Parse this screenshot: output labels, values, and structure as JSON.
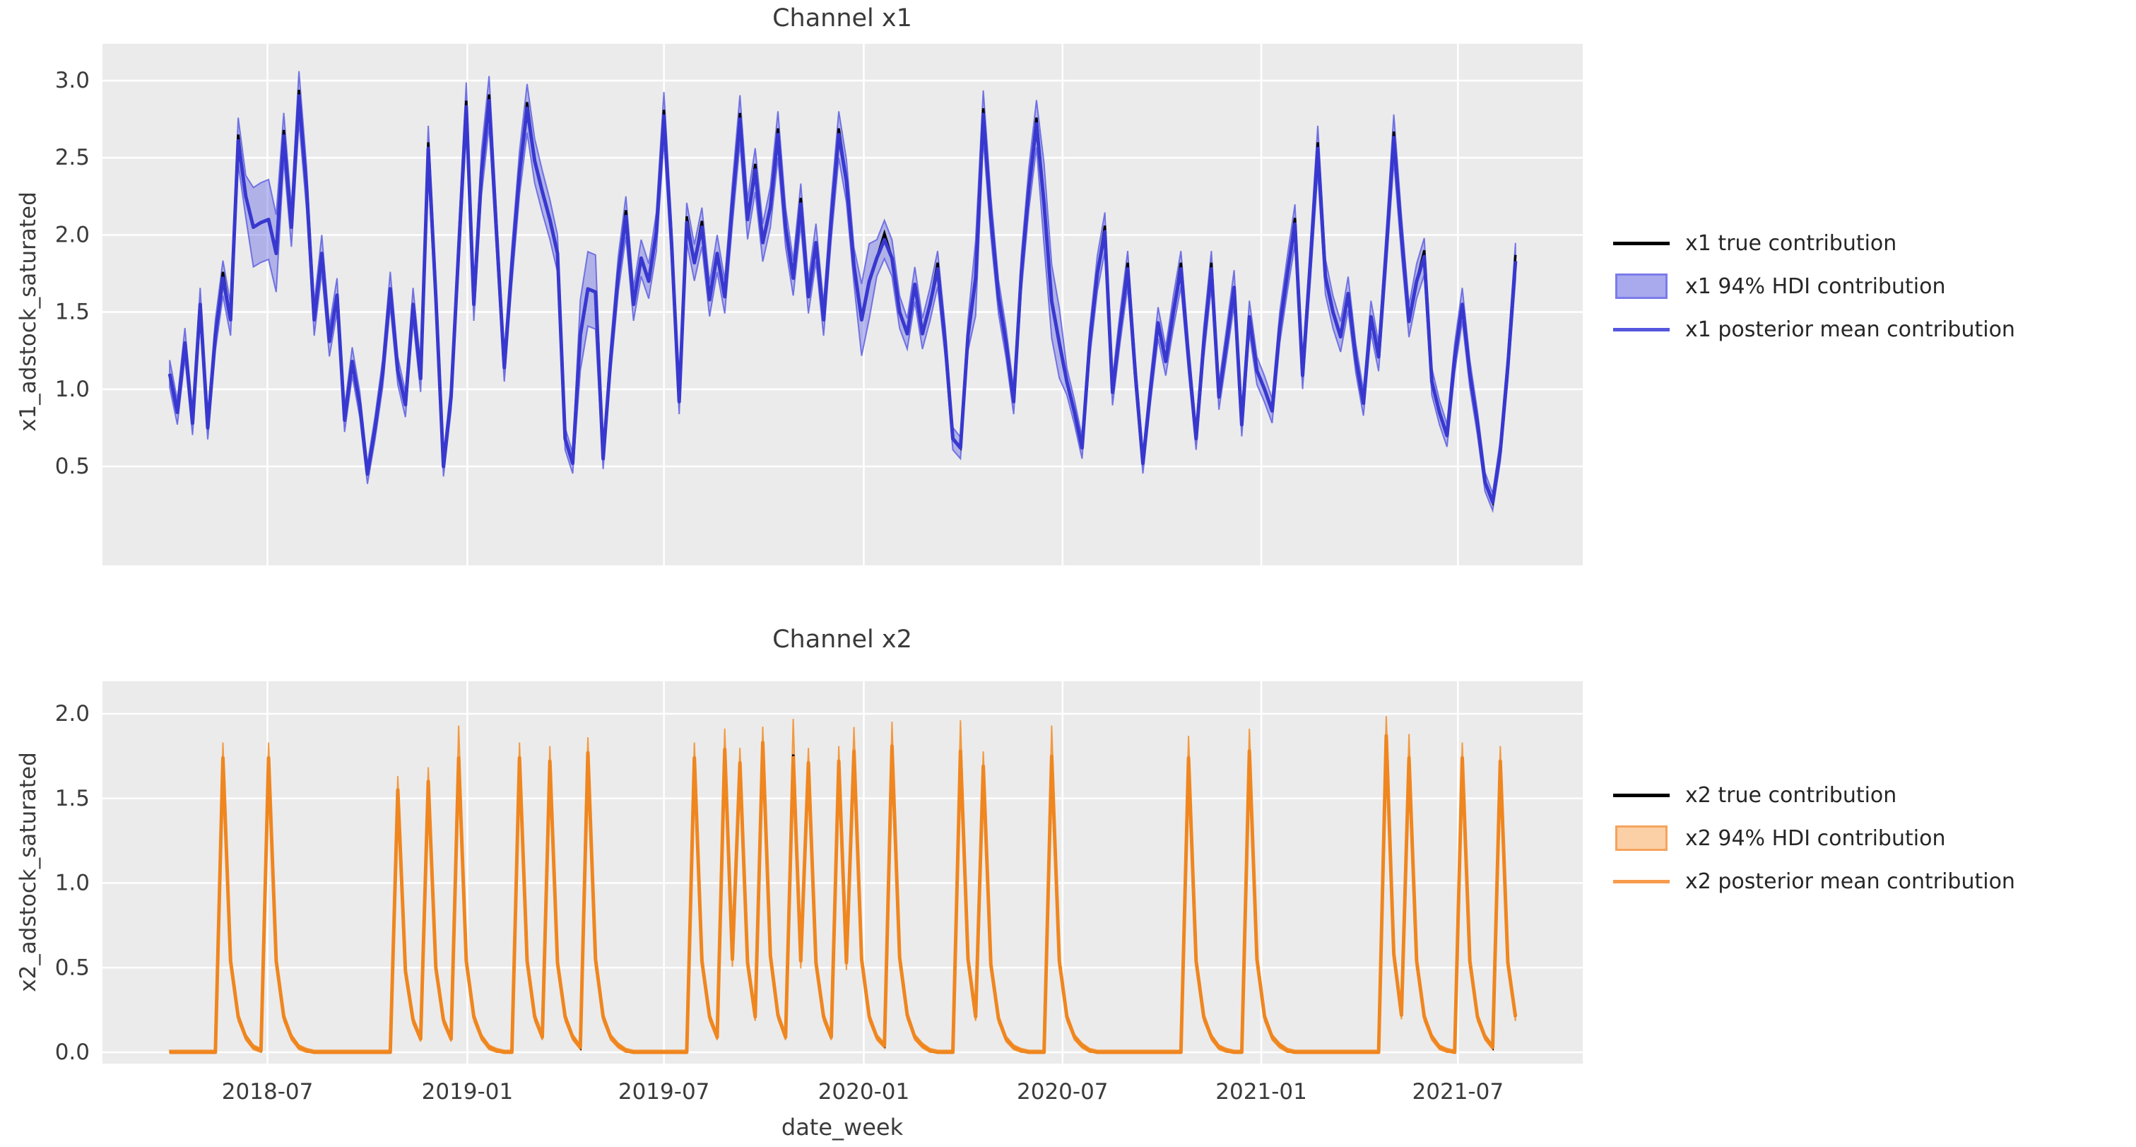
{
  "figure": {
    "background": "#ffffff",
    "axes_background": "#ebebeb",
    "grid_color": "#ffffff",
    "text_color": "#3a3a3a"
  },
  "chart_data": [
    {
      "type": "line",
      "title": "Channel x1",
      "ylabel": "x1_adstock_saturated",
      "xlabel": "",
      "x_unit": "week",
      "x_start_label": "2018-04",
      "ylim": [
        -0.14,
        3.24
      ],
      "grid": true,
      "legend_position": "right",
      "yticks": [
        {
          "v": 0.5,
          "label": "0.5"
        },
        {
          "v": 1.0,
          "label": "1.0"
        },
        {
          "v": 1.5,
          "label": "1.5"
        },
        {
          "v": 2.0,
          "label": "2.0"
        },
        {
          "v": 2.5,
          "label": "2.5"
        },
        {
          "v": 3.0,
          "label": "3.0"
        }
      ],
      "xticks": [
        {
          "w": 12.857,
          "label": "2018-07"
        },
        {
          "w": 39.143,
          "label": "2019-01"
        },
        {
          "w": 65.0,
          "label": "2019-07"
        },
        {
          "w": 91.286,
          "label": "2020-01"
        },
        {
          "w": 117.429,
          "label": "2020-07"
        },
        {
          "w": 143.571,
          "label": "2021-01"
        },
        {
          "w": 169.429,
          "label": "2021-07"
        }
      ],
      "show_xtick_labels": false,
      "colors": {
        "true_line": "#000000",
        "mean_line": "#3838cf",
        "legend_mean_line": "#5456dd",
        "band_fill": "rgba(96,98,226,0.42)",
        "band_edge": "rgba(96,98,226,0.85)",
        "legend_band_fill": "#a9aaee",
        "legend_band_edge": "#7b7cea"
      },
      "legend": [
        {
          "type": "line",
          "label": "x1 true contribution"
        },
        {
          "type": "patch",
          "label": "x1 94% HDI contribution"
        },
        {
          "type": "line2",
          "label": "x1 posterior mean contribution"
        }
      ],
      "mean_values": [
        1.1,
        0.85,
        1.3,
        0.78,
        1.55,
        0.75,
        1.35,
        1.72,
        1.45,
        2.61,
        2.25,
        2.05,
        2.08,
        2.1,
        1.88,
        2.64,
        2.05,
        2.9,
        2.3,
        1.45,
        1.88,
        1.31,
        1.61,
        0.8,
        1.18,
        0.9,
        0.45,
        0.75,
        1.1,
        1.65,
        1.12,
        0.9,
        1.55,
        1.07,
        2.56,
        1.6,
        0.5,
        0.95,
        1.9,
        2.83,
        1.55,
        2.4,
        2.87,
        2.0,
        1.14,
        1.8,
        2.4,
        2.82,
        2.48,
        2.28,
        2.1,
        1.88,
        0.68,
        0.52,
        1.35,
        1.65,
        1.63,
        0.55,
        1.2,
        1.75,
        2.12,
        1.55,
        1.85,
        1.7,
        2.02,
        2.77,
        1.95,
        0.92,
        2.08,
        1.82,
        2.05,
        1.58,
        1.88,
        1.6,
        2.2,
        2.75,
        2.1,
        2.42,
        1.95,
        2.18,
        2.65,
        2.05,
        1.72,
        2.2,
        1.6,
        1.95,
        1.45,
        2.1,
        2.65,
        2.35,
        1.8,
        1.45,
        1.7,
        1.85,
        1.97,
        1.85,
        1.5,
        1.36,
        1.68,
        1.36,
        1.55,
        1.78,
        1.3,
        0.68,
        0.62,
        1.35,
        1.72,
        2.78,
        2.12,
        1.6,
        1.3,
        0.92,
        1.75,
        2.3,
        2.72,
        2.2,
        1.57,
        1.3,
        1.05,
        0.85,
        0.62,
        1.3,
        1.75,
        2.02,
        0.98,
        1.4,
        1.78,
        1.1,
        0.52,
        1.0,
        1.43,
        1.18,
        1.5,
        1.78,
        1.2,
        0.68,
        1.3,
        1.78,
        0.95,
        1.3,
        1.66,
        0.77,
        1.47,
        1.12,
        1.0,
        0.86,
        1.4,
        1.75,
        2.07,
        1.09,
        1.8,
        2.56,
        1.73,
        1.5,
        1.34,
        1.62,
        1.2,
        0.91,
        1.47,
        1.21,
        1.9,
        2.63,
        2.0,
        1.44,
        1.7,
        1.86,
        1.05,
        0.85,
        0.7,
        1.2,
        1.55,
        1.1,
        0.78,
        0.4,
        0.27,
        0.6,
        1.15,
        1.83
      ],
      "true_peak_indices": [
        7,
        9,
        15,
        17,
        34,
        39,
        42,
        47,
        60,
        65,
        68,
        70,
        75,
        77,
        80,
        83,
        88,
        94,
        101,
        107,
        114,
        123,
        126,
        133,
        137,
        148,
        151,
        161,
        165,
        177
      ],
      "true_peak_delta": 0.04,
      "hdi_model": {
        "lo_scale": 0.96,
        "lo_offset": 0.045,
        "hi_scale": 1.04,
        "hi_offset": 0.045,
        "wide_indices": [
          11,
          12,
          13,
          14,
          54,
          55,
          56,
          91,
          92,
          106,
          115,
          116,
          117
        ],
        "wide_extra": 0.13
      }
    },
    {
      "type": "line",
      "title": "Channel x2",
      "ylabel": "x2_adstock_saturated",
      "xlabel": "date_week",
      "x_unit": "week",
      "x_start_label": "2018-04",
      "ylim": [
        -0.07,
        2.19
      ],
      "grid": true,
      "legend_position": "right",
      "yticks": [
        {
          "v": 0.0,
          "label": "0.0"
        },
        {
          "v": 0.5,
          "label": "0.5"
        },
        {
          "v": 1.0,
          "label": "1.0"
        },
        {
          "v": 1.5,
          "label": "1.5"
        },
        {
          "v": 2.0,
          "label": "2.0"
        }
      ],
      "xticks": [
        {
          "w": 12.857,
          "label": "2018-07"
        },
        {
          "w": 39.143,
          "label": "2019-01"
        },
        {
          "w": 65.0,
          "label": "2019-07"
        },
        {
          "w": 91.286,
          "label": "2020-01"
        },
        {
          "w": 117.429,
          "label": "2020-07"
        },
        {
          "w": 143.571,
          "label": "2021-01"
        },
        {
          "w": 169.429,
          "label": "2021-07"
        }
      ],
      "show_xtick_labels": true,
      "colors": {
        "true_line": "#000000",
        "mean_line": "#ef861f",
        "legend_mean_line": "#f89b4d",
        "band_fill": "rgba(246,158,64,0.45)",
        "band_edge": "rgba(243,146,50,0.9)",
        "legend_band_fill": "#fcd0a6",
        "legend_band_edge": "#f5a35c"
      },
      "legend": [
        {
          "type": "line",
          "label": "x2 true contribution"
        },
        {
          "type": "patch",
          "label": "x2 94% HDI contribution"
        },
        {
          "type": "line2",
          "label": "x2 posterior mean contribution"
        }
      ],
      "mean_values": [
        0,
        0,
        0,
        0,
        0,
        0,
        0,
        1.74,
        0.54,
        0.21,
        0.09,
        0.03,
        0.01,
        1.74,
        0.54,
        0.21,
        0.09,
        0.03,
        0.01,
        0,
        0,
        0,
        0,
        0,
        0,
        0,
        0,
        0,
        0,
        0,
        1.55,
        0.48,
        0.19,
        0.08,
        1.6,
        0.5,
        0.19,
        0.08,
        1.74,
        0.54,
        0.21,
        0.09,
        0.03,
        0.01,
        0,
        0,
        1.74,
        0.54,
        0.21,
        0.09,
        1.72,
        0.53,
        0.21,
        0.09,
        0.03,
        1.77,
        0.55,
        0.21,
        0.09,
        0.04,
        0.01,
        0,
        0,
        0,
        0,
        0,
        0,
        0,
        0,
        1.74,
        0.54,
        0.21,
        0.09,
        1.79,
        0.55,
        1.71,
        0.53,
        0.21,
        1.83,
        0.57,
        0.22,
        0.09,
        1.74,
        0.54,
        1.71,
        0.53,
        0.21,
        0.09,
        1.72,
        0.53,
        1.78,
        0.55,
        0.21,
        0.09,
        0.04,
        1.81,
        0.56,
        0.22,
        0.09,
        0.04,
        0.01,
        0,
        0,
        0,
        1.78,
        0.55,
        0.21,
        1.69,
        0.52,
        0.2,
        0.08,
        0.03,
        0.01,
        0,
        0,
        0,
        1.75,
        0.54,
        0.21,
        0.09,
        0.04,
        0.01,
        0,
        0,
        0,
        0,
        0,
        0,
        0,
        0,
        0,
        0,
        0,
        0,
        1.74,
        0.54,
        0.21,
        0.09,
        0.03,
        0.01,
        0,
        0,
        1.78,
        0.55,
        0.21,
        0.09,
        0.04,
        0.01,
        0,
        0,
        0,
        0,
        0,
        0,
        0,
        0,
        0,
        0,
        0,
        0,
        1.87,
        0.58,
        0.22,
        1.74,
        0.54,
        0.21,
        0.09,
        0.03,
        0.01,
        0,
        1.74,
        0.54,
        0.21,
        0.09,
        0.03,
        1.72,
        0.53,
        0.21
      ],
      "true_overrides": {
        "38": 1.7,
        "82": 1.76,
        "160": 1.85
      },
      "hdi_model": {
        "lo_scale": 0.94,
        "lo_offset": 0.012,
        "hi_scale": 1.045,
        "hi_offset": 0.012,
        "clip_lo_at_zero": true,
        "extra_hi": {
          "38": 0.1,
          "73": 0.03,
          "82": 0.14,
          "90": 0.05,
          "95": 0.05,
          "104": 0.09,
          "116": 0.09,
          "134": 0.04,
          "142": 0.04,
          "160": 0.02,
          "163": 0.05
        }
      }
    }
  ]
}
